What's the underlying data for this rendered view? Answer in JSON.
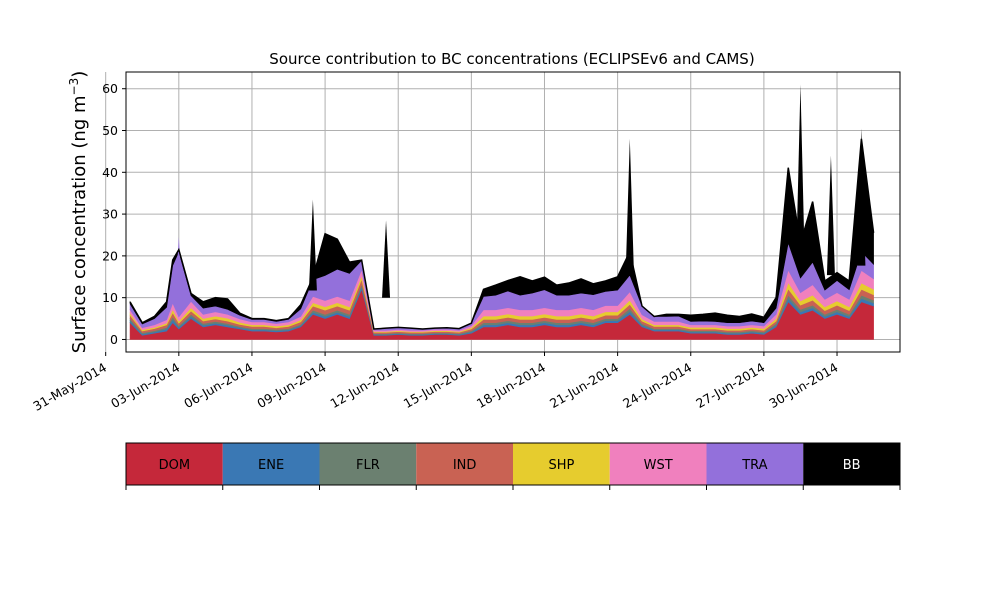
{
  "chart_data": {
    "type": "area",
    "stacked": true,
    "title": "Source contribution to BC concentrations (ECLIPSEv6 and CAMS)",
    "ylabel": "Surface concentration (ng m",
    "ylabel_sup": "−3",
    "ylabel_close": ")",
    "xlabel": "",
    "x_start": "2014-06-01",
    "ylim": [
      -3,
      64
    ],
    "xlim": [
      "2014-05-31T20:00",
      "2014-07-02T14:00"
    ],
    "yticks": [
      0,
      10,
      20,
      30,
      40,
      50,
      60
    ],
    "xticks": [
      {
        "label": "31-May-2014",
        "date": "2014-05-31"
      },
      {
        "label": "03-Jun-2014",
        "date": "2014-06-03"
      },
      {
        "label": "06-Jun-2014",
        "date": "2014-06-06"
      },
      {
        "label": "09-Jun-2014",
        "date": "2014-06-09"
      },
      {
        "label": "12-Jun-2014",
        "date": "2014-06-12"
      },
      {
        "label": "15-Jun-2014",
        "date": "2014-06-15"
      },
      {
        "label": "18-Jun-2014",
        "date": "2014-06-18"
      },
      {
        "label": "21-Jun-2014",
        "date": "2014-06-21"
      },
      {
        "label": "24-Jun-2014",
        "date": "2014-06-24"
      },
      {
        "label": "27-Jun-2014",
        "date": "2014-06-27"
      },
      {
        "label": "30-Jun-2014",
        "date": "2014-06-30"
      }
    ],
    "grid": true,
    "legend_position": "bottom",
    "x": [
      "2014-06-01T00:00",
      "2014-06-01T12:00",
      "2014-06-02T00:00",
      "2014-06-02T12:00",
      "2014-06-02T18:00",
      "2014-06-03T00:00",
      "2014-06-03T12:00",
      "2014-06-04T00:00",
      "2014-06-04T12:00",
      "2014-06-05T00:00",
      "2014-06-05T12:00",
      "2014-06-06T00:00",
      "2014-06-06T12:00",
      "2014-06-07T00:00",
      "2014-06-07T12:00",
      "2014-06-08T00:00",
      "2014-06-08T12:00",
      "2014-06-09T00:00",
      "2014-06-09T12:00",
      "2014-06-10T00:00",
      "2014-06-10T12:00",
      "2014-06-11T00:00",
      "2014-06-11T12:00",
      "2014-06-12T00:00",
      "2014-06-12T12:00",
      "2014-06-13T00:00",
      "2014-06-13T12:00",
      "2014-06-14T00:00",
      "2014-06-14T12:00",
      "2014-06-15T00:00",
      "2014-06-15T12:00",
      "2014-06-16T00:00",
      "2014-06-16T12:00",
      "2014-06-17T00:00",
      "2014-06-17T12:00",
      "2014-06-18T00:00",
      "2014-06-18T12:00",
      "2014-06-19T00:00",
      "2014-06-19T12:00",
      "2014-06-20T00:00",
      "2014-06-20T12:00",
      "2014-06-21T00:00",
      "2014-06-21T12:00",
      "2014-06-22T00:00",
      "2014-06-22T12:00",
      "2014-06-23T00:00",
      "2014-06-23T12:00",
      "2014-06-24T00:00",
      "2014-06-24T12:00",
      "2014-06-25T00:00",
      "2014-06-25T12:00",
      "2014-06-26T00:00",
      "2014-06-26T12:00",
      "2014-06-27T00:00",
      "2014-06-27T12:00",
      "2014-06-28T00:00",
      "2014-06-28T12:00",
      "2014-06-29T00:00",
      "2014-06-29T12:00",
      "2014-06-30T00:00",
      "2014-06-30T12:00",
      "2014-07-01T00:00",
      "2014-07-01T12:00"
    ],
    "series": [
      {
        "name": "DOM",
        "color": "#c5283a",
        "values": [
          4,
          1,
          1.5,
          2,
          4,
          2.5,
          5,
          3,
          3.5,
          3,
          2.5,
          2,
          2,
          1.8,
          2,
          3,
          6,
          5,
          6,
          5,
          12,
          1,
          1,
          1.2,
          1,
          1,
          1.2,
          1.2,
          1,
          1.5,
          3,
          3,
          3.5,
          3,
          3,
          3.5,
          3,
          3,
          3.5,
          3,
          4,
          4,
          6,
          3,
          2,
          2,
          2,
          1.5,
          1.5,
          1.5,
          1.2,
          1.2,
          1.5,
          1.2,
          3,
          9,
          6,
          7,
          5,
          6,
          5,
          9,
          8
        ]
      },
      {
        "name": "ENE",
        "color": "#3a78b4",
        "values": [
          0.5,
          0.3,
          0.3,
          0.5,
          0.8,
          0.4,
          0.5,
          0.4,
          0.4,
          0.4,
          0.3,
          0.3,
          0.3,
          0.3,
          0.3,
          0.3,
          0.5,
          0.5,
          0.5,
          0.5,
          0.6,
          0.2,
          0.2,
          0.2,
          0.2,
          0.2,
          0.2,
          0.2,
          0.2,
          0.3,
          0.5,
          0.5,
          0.5,
          0.5,
          0.5,
          0.5,
          0.5,
          0.5,
          0.5,
          0.5,
          0.5,
          0.5,
          0.7,
          0.4,
          0.3,
          0.3,
          0.3,
          0.3,
          0.3,
          0.3,
          0.3,
          0.3,
          0.3,
          0.3,
          0.4,
          0.8,
          0.6,
          0.6,
          0.5,
          0.6,
          0.5,
          0.8,
          0.7
        ]
      },
      {
        "name": "FLR",
        "color": "#6b8070",
        "values": [
          0.5,
          0.3,
          0.3,
          0.4,
          0.6,
          0.4,
          0.5,
          0.4,
          0.4,
          0.4,
          0.3,
          0.3,
          0.3,
          0.3,
          0.3,
          0.3,
          0.5,
          0.5,
          0.5,
          0.5,
          0.6,
          0.2,
          0.2,
          0.2,
          0.2,
          0.2,
          0.2,
          0.2,
          0.2,
          0.3,
          0.5,
          0.5,
          0.5,
          0.5,
          0.5,
          0.5,
          0.5,
          0.5,
          0.5,
          0.5,
          0.5,
          0.5,
          0.7,
          0.4,
          0.3,
          0.3,
          0.3,
          0.3,
          0.3,
          0.3,
          0.3,
          0.3,
          0.3,
          0.3,
          0.4,
          0.8,
          0.6,
          0.6,
          0.5,
          0.6,
          0.5,
          0.8,
          0.7
        ]
      },
      {
        "name": "IND",
        "color": "#c96253",
        "values": [
          0.8,
          0.4,
          0.5,
          0.6,
          1,
          0.6,
          0.8,
          0.6,
          0.6,
          0.6,
          0.5,
          0.5,
          0.5,
          0.4,
          0.5,
          0.6,
          1,
          1,
          1,
          1,
          1.2,
          0.3,
          0.3,
          0.3,
          0.3,
          0.3,
          0.3,
          0.3,
          0.3,
          0.4,
          0.8,
          0.8,
          0.8,
          0.8,
          0.8,
          0.8,
          0.8,
          0.8,
          0.8,
          0.8,
          0.8,
          0.8,
          1,
          0.6,
          0.5,
          0.5,
          0.5,
          0.4,
          0.4,
          0.4,
          0.4,
          0.4,
          0.4,
          0.4,
          0.6,
          1.5,
          1,
          1.2,
          0.9,
          1,
          0.9,
          1.4,
          1.3
        ]
      },
      {
        "name": "SHP",
        "color": "#e6cc2e",
        "values": [
          0.5,
          0.3,
          0.3,
          0.4,
          0.8,
          0.5,
          0.8,
          0.6,
          0.7,
          0.7,
          0.5,
          0.4,
          0.4,
          0.4,
          0.4,
          0.5,
          0.8,
          0.8,
          0.8,
          0.8,
          0.8,
          0.2,
          0.2,
          0.2,
          0.2,
          0.2,
          0.2,
          0.2,
          0.2,
          0.3,
          0.8,
          0.8,
          0.8,
          0.8,
          0.8,
          0.8,
          0.8,
          0.8,
          0.8,
          0.8,
          0.8,
          0.8,
          1,
          0.5,
          0.4,
          0.4,
          0.4,
          0.4,
          0.4,
          0.4,
          0.4,
          0.4,
          0.4,
          0.4,
          0.6,
          1.5,
          1,
          1.2,
          0.9,
          1,
          0.9,
          1.5,
          1.3
        ]
      },
      {
        "name": "WST",
        "color": "#f080be",
        "values": [
          0.8,
          0.5,
          0.6,
          0.8,
          1.5,
          1,
          1.5,
          1,
          1,
          0.9,
          0.8,
          0.7,
          0.7,
          0.6,
          0.7,
          0.8,
          1.5,
          1.5,
          1.5,
          1.5,
          1.5,
          0.3,
          0.3,
          0.3,
          0.3,
          0.3,
          0.3,
          0.3,
          0.3,
          0.5,
          1.5,
          1.5,
          1.5,
          1.5,
          1.5,
          1.5,
          1.5,
          1.5,
          1.5,
          1.5,
          1.5,
          1.5,
          2,
          1,
          0.8,
          0.8,
          0.8,
          0.6,
          0.6,
          0.6,
          0.6,
          0.6,
          0.6,
          0.6,
          1,
          3,
          2,
          2.5,
          1.8,
          2,
          1.8,
          3,
          2.5
        ]
      },
      {
        "name": "TRA",
        "color": "#9370db",
        "values": [
          1.4,
          0.9,
          1.5,
          3,
          9,
          15.6,
          1.4,
          1.5,
          1.4,
          1.2,
          0.9,
          0.6,
          0.6,
          0.5,
          0.6,
          1.8,
          4,
          6,
          6.5,
          6.5,
          2.2,
          0.3,
          0.5,
          0.5,
          0.5,
          0.3,
          0.3,
          0.4,
          0.4,
          0.6,
          3.2,
          3.5,
          4,
          3.5,
          4,
          4.3,
          3.5,
          3.5,
          3.5,
          3.6,
          3.4,
          3.7,
          4,
          2.1,
          1.2,
          1.2,
          1.3,
          0.8,
          0.9,
          0.8,
          0.8,
          0.8,
          0.9,
          0.8,
          1.5,
          6.5,
          3.5,
          5.4,
          2.2,
          2.9,
          2.3,
          4.5,
          3.5
        ]
      },
      {
        "name": "BB",
        "color": "#000000",
        "values": [
          0.5,
          0.3,
          0.5,
          1.3,
          1.3,
          0.5,
          0.5,
          1.5,
          2,
          2.5,
          0.5,
          0.2,
          0.2,
          0.2,
          0.2,
          1,
          0.5,
          10,
          7.2,
          2.7,
          0.1,
          0,
          0,
          0,
          0,
          0,
          0,
          0,
          0,
          0,
          1.7,
          2.4,
          2.5,
          4.4,
          2.9,
          3,
          2.4,
          2.9,
          3.4,
          2.6,
          2.5,
          3.2,
          5.6,
          0,
          0,
          0.5,
          0.4,
          1.5,
          1.6,
          2,
          1.8,
          1.5,
          1.7,
          1.3,
          2.5,
          18,
          8.3,
          14.5,
          2.2,
          1.9,
          2.1,
          27,
          7.5
        ]
      }
    ],
    "peaks": [
      {
        "x": "2014-06-03T00:00",
        "value": 24.5,
        "color": "#9370db"
      },
      {
        "x": "2014-06-08T12:00",
        "value": 33.5,
        "color": "#000000"
      },
      {
        "x": "2014-06-11T12:00",
        "value": 28.5,
        "color": "#000000"
      },
      {
        "x": "2014-06-21T12:00",
        "value": 48,
        "color": "#000000"
      },
      {
        "x": "2014-06-28T12:00",
        "value": 61,
        "color": "#000000"
      },
      {
        "x": "2014-06-29T18:00",
        "value": 44,
        "color": "#000000"
      },
      {
        "x": "2014-07-01T00:00",
        "value": 50.5,
        "color": "#000000"
      }
    ],
    "legend": [
      {
        "label": "DOM",
        "color": "#c5283a",
        "text_color": "#000000"
      },
      {
        "label": "ENE",
        "color": "#3a78b4",
        "text_color": "#000000"
      },
      {
        "label": "FLR",
        "color": "#6b8070",
        "text_color": "#000000"
      },
      {
        "label": "IND",
        "color": "#c96253",
        "text_color": "#000000"
      },
      {
        "label": "SHP",
        "color": "#e6cc2e",
        "text_color": "#000000"
      },
      {
        "label": "WST",
        "color": "#f080be",
        "text_color": "#000000"
      },
      {
        "label": "TRA",
        "color": "#9370db",
        "text_color": "#000000"
      },
      {
        "label": "BB",
        "color": "#000000",
        "text_color": "#ffffff"
      }
    ]
  }
}
